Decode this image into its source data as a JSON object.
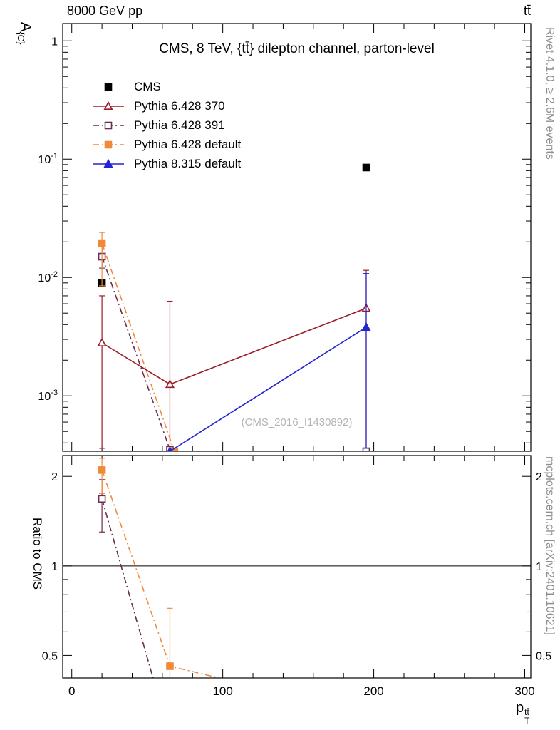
{
  "header": {
    "left": "8000 GeV pp",
    "right": "tt̄"
  },
  "annotations": {
    "watermark": "(CMS_2016_I1430892)",
    "right_top": "Rivet 4.1.0, ≥ 2.6M events",
    "right_bottom": "mcplots.cern.ch [arXiv:2401.10621]"
  },
  "chart_data": {
    "type": "line",
    "title": "CMS, 8 TeV, {tt̄} dilepton channel, parton-level",
    "ylabel": "A_{C}",
    "ylabel_parts": {
      "base": "A",
      "sub": "{C}"
    },
    "ratio_ylabel": "Ratio to CMS",
    "xlabel": "p_T^tt",
    "xlabel_parts": {
      "base": "p",
      "sub": "T",
      "sup": "tt̄"
    },
    "xlim": [
      -6,
      304
    ],
    "xticks": [
      0,
      100,
      200,
      300
    ],
    "xtick_labels": [
      "0",
      "100",
      "200",
      "300"
    ],
    "x_minor_step": 20,
    "panels": [
      {
        "id": "main",
        "yscale": "log",
        "ylim": [
          0.00034,
          1.4
        ],
        "yticks": [
          {
            "v": 1,
            "label": {
              "text": "1"
            }
          },
          {
            "v": 0.1,
            "label": {
              "base": "10",
              "exp": "-1"
            }
          },
          {
            "v": 0.01,
            "label": {
              "base": "10",
              "exp": "-2"
            }
          },
          {
            "v": 0.001,
            "label": {
              "base": "10",
              "exp": "-3"
            }
          }
        ],
        "label_both_sides": false
      },
      {
        "id": "ratio",
        "yscale": "log",
        "ylim": [
          0.42,
          2.35
        ],
        "yticks": [
          {
            "v": 2,
            "label": {
              "text": "2"
            }
          },
          {
            "v": 1,
            "label": {
              "text": "1"
            }
          },
          {
            "v": 0.5,
            "label": {
              "text": "0.5"
            }
          }
        ],
        "label_both_sides": true,
        "ref_line": 1
      }
    ],
    "series": [
      {
        "name": "CMS",
        "color": "#000000",
        "marker": "square",
        "fill": "filled",
        "line": "none",
        "legend": true,
        "points": [
          {
            "x": 20,
            "y": 0.009
          },
          {
            "x": 195,
            "y": 0.085
          }
        ]
      },
      {
        "name": "Pythia 6.428 370",
        "color": "#9a1e28",
        "marker": "triangle",
        "fill": "open",
        "line": "solid",
        "legend": true,
        "points": [
          {
            "x": 20,
            "y": 0.0028,
            "ylo": 0.00036,
            "yhi": 0.007
          },
          {
            "x": 65,
            "y": 0.00125,
            "ylo": 0.00036,
            "yhi": 0.0063
          },
          {
            "x": 195,
            "y": 0.0055,
            "ylo": 0.00036,
            "yhi": 0.0115
          }
        ]
      },
      {
        "name": "Pythia 6.428 391",
        "color": "#6b2e4f",
        "marker": "square",
        "fill": "open",
        "line": "dashdot",
        "legend": true,
        "points": [
          {
            "x": 20,
            "y": 0.015,
            "ylo": 0.012,
            "yhi": 0.019
          },
          {
            "x": 65,
            "y": 0.00035
          },
          {
            "x": 195,
            "y": 0.00034,
            "gap": true
          }
        ]
      },
      {
        "name": "Pythia 6.428 default",
        "color": "#f08a3a",
        "marker": "square",
        "fill": "filled",
        "line": "dashdot",
        "legend": true,
        "points": [
          {
            "x": 20,
            "y": 0.0195,
            "ylo": 0.0085,
            "yhi": 0.024
          },
          {
            "x": 68,
            "y": 0.00034
          }
        ]
      },
      {
        "name": "Pythia 8.315 default",
        "color": "#2424d0",
        "marker": "triangle",
        "fill": "filled",
        "line": "solid",
        "legend": true,
        "points": [
          {
            "x": 65,
            "y": 0.00034
          },
          {
            "x": 195,
            "y": 0.0038,
            "ylo": 0.00036,
            "yhi": 0.0108
          }
        ]
      }
    ],
    "ratio_series": [
      {
        "name": "Pythia 6.428 391",
        "color": "#6b2e4f",
        "marker": "square",
        "fill": "open",
        "line": "dashdot",
        "points": [
          {
            "x": 20,
            "y": 1.68,
            "ylo": 1.3,
            "yhi": 1.95
          },
          {
            "x": 55,
            "y": 0.4,
            "nomarker": true
          }
        ]
      },
      {
        "name": "Pythia 6.428 default",
        "color": "#f08a3a",
        "marker": "square",
        "fill": "filled",
        "line": "dashdot",
        "points": [
          {
            "x": 20,
            "y": 2.1,
            "ylo": 1.75,
            "yhi": 2.3
          },
          {
            "x": 65,
            "y": 0.46,
            "ylo": 0.4,
            "yhi": 0.72
          },
          {
            "x": 115,
            "y": 0.4,
            "nomarker": true
          }
        ]
      }
    ]
  }
}
